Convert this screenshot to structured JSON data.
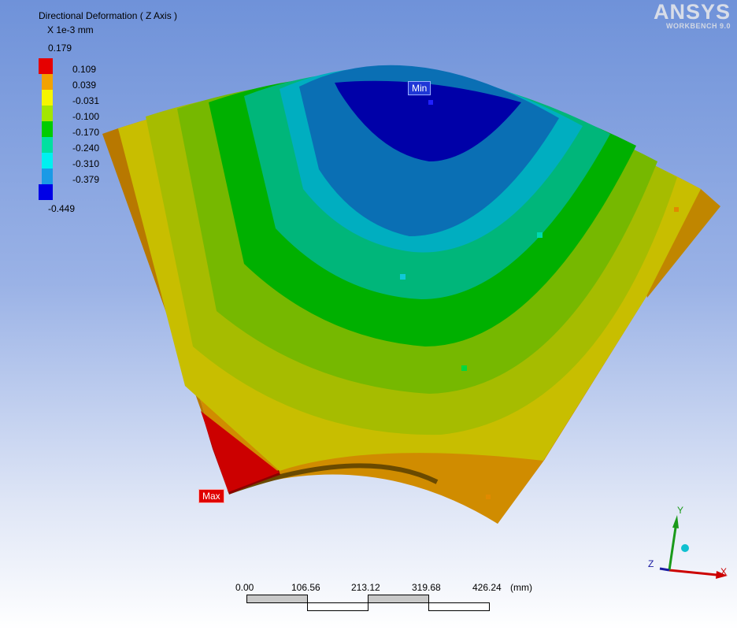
{
  "legend": {
    "title": "Directional Deformation ( Z Axis )",
    "units": "X 1e-3 mm",
    "max_value": "0.179",
    "min_value": "-0.449",
    "bands": [
      {
        "label": "0.109",
        "color": "#e60000"
      },
      {
        "label": "0.039",
        "color": "#f2a200"
      },
      {
        "label": "-0.031",
        "color": "#f5f500"
      },
      {
        "label": "-0.100",
        "color": "#a3e600"
      },
      {
        "label": "-0.170",
        "color": "#00cc00"
      },
      {
        "label": "-0.240",
        "color": "#00e0a0"
      },
      {
        "label": "-0.310",
        "color": "#00f0f0"
      },
      {
        "label": "-0.379",
        "color": "#1a9ae6"
      },
      {
        "label": "",
        "color": "#0000e6"
      }
    ]
  },
  "logo": {
    "main": "ANSYS",
    "sub": "WORKBENCH 9.0"
  },
  "probes": {
    "min_label": "Min",
    "max_label": "Max"
  },
  "scale": {
    "ticks": [
      "0.00",
      "106.56",
      "213.12",
      "319.68",
      "426.24"
    ],
    "unit": "(mm)"
  },
  "triad": {
    "x_label": "X",
    "y_label": "Y",
    "z_label": "Z"
  },
  "colors": {
    "blue_dark": "#0000a8",
    "blue": "#0a5fb4",
    "teal_blue": "#0094b0",
    "cyan": "#00aec0",
    "teal": "#00b894",
    "teal_green": "#00b860",
    "green": "#00b300",
    "yellow_green": "#7ab800",
    "olive": "#a8bc00",
    "yellow": "#c8c000",
    "orange": "#d09000",
    "orange_dark": "#b87800",
    "red": "#cc0000"
  }
}
